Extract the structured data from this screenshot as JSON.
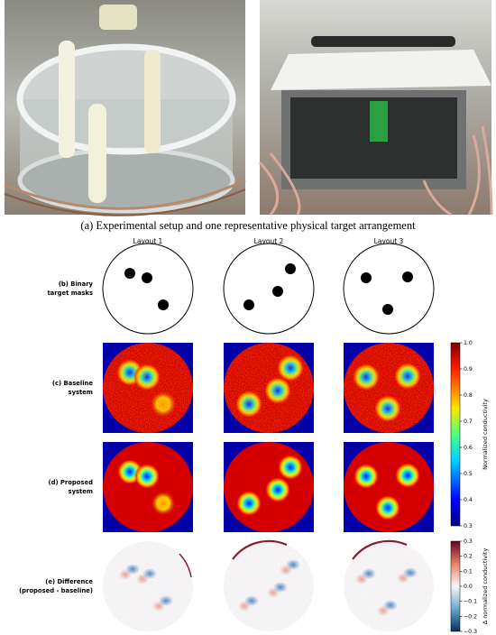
{
  "caption_a": {
    "label": "(a)",
    "text": "Experimental setup and one representative physical target arrangement"
  },
  "columns": [
    "Layout 1",
    "Layout 2",
    "Layout 3"
  ],
  "rows": [
    {
      "label": [
        "(b) Binary",
        "target masks"
      ]
    },
    {
      "label": [
        "(c) Baseline",
        "system"
      ]
    },
    {
      "label": [
        "(d) Proposed",
        "system"
      ]
    },
    {
      "label": [
        "(e) Difference",
        "(proposed - baseline)"
      ]
    }
  ],
  "colorbars": [
    {
      "label": "Normalized conductivity",
      "ticks": [
        "1.0",
        "0.9",
        "0.8",
        "0.7",
        "0.6",
        "0.5",
        "0.4",
        "0.3"
      ]
    },
    {
      "label": "Δ normalized conductivity",
      "ticks": [
        "0.3",
        "0.2",
        "0.1",
        "0.0",
        "−0.1",
        "−0.2",
        "−0.3"
      ]
    }
  ]
}
